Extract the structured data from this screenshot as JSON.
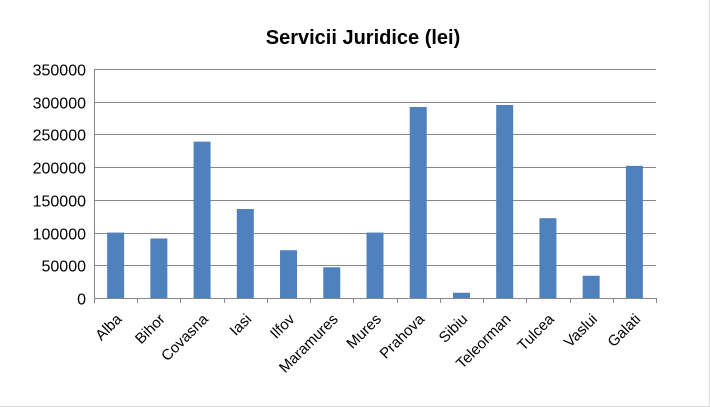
{
  "chart_data": {
    "type": "bar",
    "title": "Servicii Juridice (lei)",
    "xlabel": "",
    "ylabel": "",
    "categories": [
      "Alba",
      "Bihor",
      "Covasna",
      "Iasi",
      "Ilfov",
      "Maramures",
      "Mures",
      "Prahova",
      "Sibiu",
      "Teleorman",
      "Tulcea",
      "Vaslui",
      "Galati"
    ],
    "values": [
      100000,
      91000,
      239000,
      136000,
      73000,
      47000,
      100000,
      292000,
      8000,
      295000,
      122000,
      34000,
      202000
    ],
    "ylim": [
      0,
      350000
    ],
    "yticks": [
      "0",
      "50000",
      "100000",
      "150000",
      "200000",
      "250000",
      "300000",
      "350000"
    ],
    "grid": true,
    "legend": "none",
    "bar_color": "#4f81bd"
  }
}
